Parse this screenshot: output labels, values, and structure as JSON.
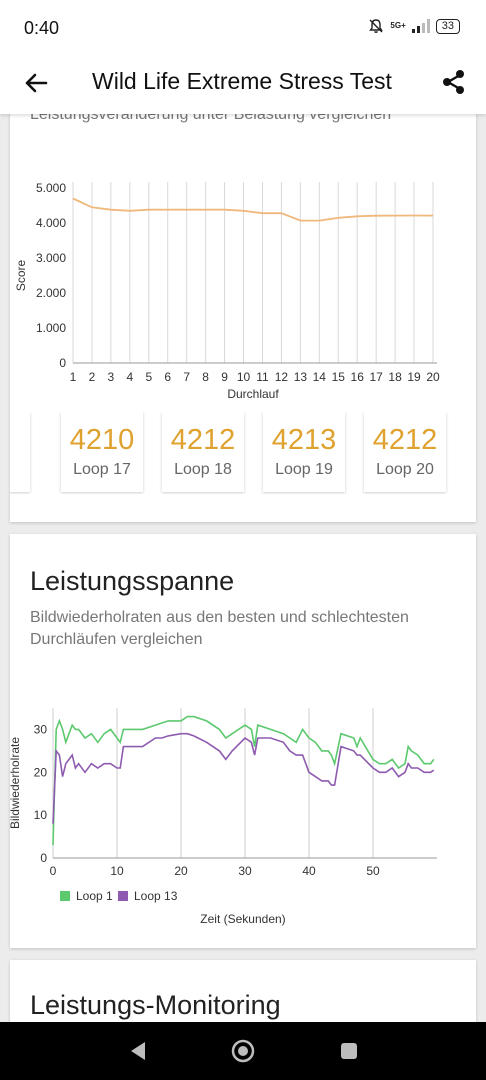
{
  "status_bar": {
    "time": "0:40",
    "network": "5G+",
    "battery": "33"
  },
  "app_bar": {
    "title": "Wild Life Extreme Stress Test"
  },
  "performance_change": {
    "subtitle": "Leistungsveränderung unter Belastung vergleichen",
    "chart_data": {
      "type": "line",
      "xlabel": "Durchlauf",
      "ylabel": "Score",
      "x": [
        1,
        2,
        3,
        4,
        5,
        6,
        7,
        8,
        9,
        10,
        11,
        12,
        13,
        14,
        15,
        16,
        17,
        18,
        19,
        20
      ],
      "y_ticks": [
        "0",
        "1.000",
        "2.000",
        "3.000",
        "4.000",
        "5.000"
      ],
      "ylim": [
        0,
        5000
      ],
      "color": "#f0b87a",
      "series": [
        {
          "values": [
            4700,
            4450,
            4380,
            4350,
            4380,
            4380,
            4380,
            4380,
            4380,
            4350,
            4280,
            4280,
            4070,
            4070,
            4150,
            4190,
            4210,
            4212,
            4213,
            4212
          ]
        }
      ]
    },
    "loops": [
      {
        "score": "4210",
        "label": "Loop 17"
      },
      {
        "score": "4212",
        "label": "Loop 18"
      },
      {
        "score": "4213",
        "label": "Loop 19"
      },
      {
        "score": "4212",
        "label": "Loop 20"
      }
    ]
  },
  "performance_range": {
    "title": "Leistungsspanne",
    "subtitle": "Bildwiederholraten aus den besten und schlechtesten Durchläufen vergleichen",
    "chart_data": {
      "type": "line",
      "xlabel": "Zeit (Sekunden)",
      "ylabel": "Bildwiederholrate",
      "x_ticks": [
        "0",
        "10",
        "20",
        "30",
        "40",
        "50"
      ],
      "y_ticks": [
        "0",
        "10",
        "20",
        "30"
      ],
      "xlim": [
        0,
        60
      ],
      "ylim": [
        0,
        35
      ],
      "legend_position": "bottom-left",
      "series": [
        {
          "name": "Loop 1",
          "color": "#5cc96e",
          "x": [
            0,
            0.5,
            1,
            1.5,
            2,
            2.5,
            3,
            3.5,
            4,
            5,
            6,
            7,
            8,
            9,
            10,
            10.5,
            11,
            12,
            14,
            16,
            17,
            18,
            20,
            21,
            22,
            24,
            26,
            27,
            28,
            30,
            31,
            31.5,
            32,
            34,
            36,
            37,
            38,
            39,
            40,
            41,
            42,
            43,
            43.5,
            44,
            45,
            47,
            47.5,
            48,
            50,
            51,
            52,
            53,
            54,
            55,
            55.5,
            56,
            57,
            58,
            59,
            59.5
          ],
          "values": [
            3,
            30,
            32,
            30,
            27,
            29,
            31,
            30,
            30,
            28,
            29,
            27,
            29,
            30,
            28,
            27,
            30,
            30,
            30,
            31,
            31.5,
            32,
            32,
            33,
            33,
            32,
            30,
            28,
            29,
            31,
            30,
            26,
            31,
            30,
            29,
            28,
            27,
            30,
            28,
            27,
            25,
            25,
            24,
            22,
            29,
            28,
            26,
            28,
            23,
            22,
            22,
            23,
            21,
            22,
            26,
            25,
            24,
            22,
            22,
            23
          ]
        },
        {
          "name": "Loop 13",
          "color": "#8e5bb0",
          "x": [
            0,
            0.5,
            1,
            1.5,
            2,
            2.5,
            3,
            3.5,
            4,
            5,
            6,
            7,
            8,
            9,
            10,
            10.5,
            11,
            12,
            14,
            16,
            17,
            18,
            20,
            21,
            22,
            24,
            26,
            27,
            28,
            30,
            31,
            31.5,
            32,
            34,
            36,
            37,
            38,
            39,
            40,
            41,
            42,
            43,
            43.5,
            44,
            45,
            47,
            47.5,
            48,
            50,
            51,
            52,
            53,
            54,
            55,
            55.5,
            56,
            57,
            58,
            59,
            59.5
          ],
          "values": [
            8,
            25,
            24,
            19,
            22,
            23,
            24,
            21,
            22,
            20,
            22,
            21,
            22,
            22,
            21,
            21,
            26,
            26,
            26,
            28,
            28,
            28.5,
            29,
            29,
            28.5,
            27,
            25,
            23,
            25,
            28,
            27,
            24,
            28,
            28,
            27,
            25,
            24,
            24,
            20,
            19,
            18,
            18,
            17,
            17,
            26,
            25,
            24,
            24,
            21,
            20,
            20,
            21,
            19,
            20,
            22,
            21,
            21,
            20,
            20,
            20.5
          ]
        }
      ]
    }
  },
  "monitoring": {
    "title": "Leistungs-Monitoring"
  }
}
